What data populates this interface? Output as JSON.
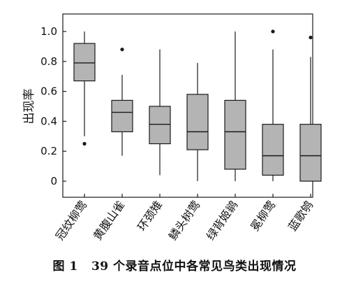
{
  "chart_data": {
    "type": "boxplot",
    "ylabel": "出现率",
    "xlabel": "",
    "ylim": [
      0,
      1.0
    ],
    "yticks": [
      "0",
      "0.2",
      "0.4",
      "0.6",
      "0.8",
      "1.0"
    ],
    "grid": false,
    "colors": {
      "box_fill": "#b4b4b4",
      "line": "#1a1a1a"
    },
    "categories": [
      "冠纹柳莺",
      "黄腹山雀",
      "环颈雉",
      "鳞头树莺",
      "绿背姬鹟",
      "冕柳莺",
      "蓝歌鸲"
    ],
    "boxes": [
      {
        "min": 0.3,
        "q1": 0.67,
        "median": 0.79,
        "q3": 0.92,
        "max": 1.0,
        "outliers": [
          0.25
        ]
      },
      {
        "min": 0.17,
        "q1": 0.33,
        "median": 0.46,
        "q3": 0.54,
        "max": 0.71,
        "outliers": [
          0.88
        ]
      },
      {
        "min": 0.04,
        "q1": 0.25,
        "median": 0.38,
        "q3": 0.5,
        "max": 0.88,
        "outliers": []
      },
      {
        "min": 0.0,
        "q1": 0.21,
        "median": 0.33,
        "q3": 0.58,
        "max": 0.79,
        "outliers": []
      },
      {
        "min": 0.0,
        "q1": 0.08,
        "median": 0.33,
        "q3": 0.54,
        "max": 1.0,
        "outliers": []
      },
      {
        "min": 0.0,
        "q1": 0.04,
        "median": 0.17,
        "q3": 0.38,
        "max": 0.88,
        "outliers": [
          1.0
        ]
      },
      {
        "min": 0.0,
        "q1": 0.0,
        "median": 0.17,
        "q3": 0.38,
        "max": 0.83,
        "outliers": [
          0.96
        ]
      }
    ]
  },
  "caption": {
    "label": "图 1",
    "text": "39 个录音点位中各常见鸟类出现情况"
  }
}
